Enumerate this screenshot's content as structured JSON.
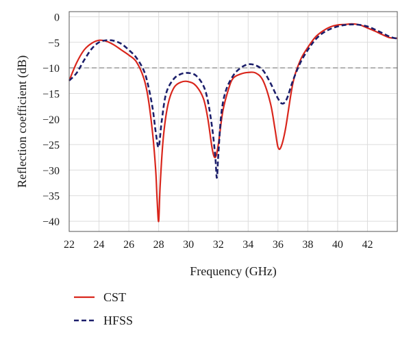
{
  "chart_data": {
    "type": "line",
    "xlabel": "Frequency (GHz)",
    "ylabel": "Reflection coefficient (dB)",
    "xlim": [
      22,
      44
    ],
    "ylim": [
      -42,
      1
    ],
    "xticks": [
      22,
      24,
      26,
      28,
      30,
      32,
      34,
      36,
      38,
      40,
      42
    ],
    "xtick_labels": [
      "22",
      "24",
      "26",
      "28",
      "30",
      "32",
      "34",
      "36",
      "38",
      "40",
      "42"
    ],
    "yticks": [
      0,
      -5,
      -10,
      -15,
      -20,
      -25,
      -30,
      -35,
      -40
    ],
    "ytick_labels": [
      "0",
      "−5",
      "−10",
      "−15",
      "−20",
      "−25",
      "−30",
      "−35",
      "−40"
    ],
    "grid": true,
    "reference_line": {
      "y": -10,
      "style": "dashed",
      "color": "#9a9a9a"
    },
    "legend_position": "bottom-left",
    "series": [
      {
        "name": "CST",
        "color": "#d9261c",
        "dash": "solid",
        "x": [
          22,
          22.5,
          23,
          23.5,
          24,
          24.5,
          25,
          25.5,
          26,
          26.5,
          27,
          27.3,
          27.6,
          27.8,
          27.9,
          28,
          28.1,
          28.3,
          28.6,
          29,
          29.5,
          30,
          30.5,
          31,
          31.3,
          31.6,
          31.8,
          32,
          32.3,
          32.7,
          33,
          33.5,
          34,
          34.5,
          35,
          35.5,
          35.8,
          36,
          36.2,
          36.5,
          37,
          37.5,
          38,
          38.5,
          39,
          39.5,
          40,
          40.5,
          41,
          41.5,
          42,
          42.5,
          43,
          43.5,
          44
        ],
        "y": [
          -12.5,
          -9,
          -6.5,
          -5.2,
          -4.6,
          -4.8,
          -5.5,
          -6.5,
          -7.5,
          -8.8,
          -12,
          -16,
          -23,
          -30,
          -36,
          -40,
          -33,
          -24,
          -17.5,
          -14,
          -12.8,
          -12.7,
          -13.5,
          -16,
          -20,
          -26,
          -27.5,
          -25,
          -18.5,
          -14,
          -12,
          -11.2,
          -10.9,
          -11,
          -12.5,
          -17,
          -22,
          -25.5,
          -25.5,
          -22,
          -13,
          -8.5,
          -6,
          -4,
          -2.8,
          -2,
          -1.6,
          -1.5,
          -1.4,
          -1.6,
          -2.2,
          -2.8,
          -3.5,
          -4.1,
          -4.2
        ]
      },
      {
        "name": "HFSS",
        "color": "#1c1f6b",
        "dash": "dashed",
        "x": [
          22,
          22.5,
          23,
          23.5,
          24,
          24.5,
          25,
          25.5,
          26,
          26.5,
          27,
          27.3,
          27.6,
          27.8,
          28,
          28.2,
          28.5,
          29,
          29.5,
          30,
          30.5,
          31,
          31.3,
          31.6,
          31.8,
          31.9,
          32,
          32.2,
          32.5,
          33,
          33.5,
          34,
          34.5,
          35,
          35.5,
          36,
          36.3,
          36.6,
          37,
          37.5,
          38,
          38.5,
          39,
          39.5,
          40,
          40.5,
          41,
          41.5,
          42,
          42.5,
          43,
          43.5,
          44
        ],
        "y": [
          -12.5,
          -11,
          -8.5,
          -6.3,
          -5,
          -4.6,
          -4.7,
          -5.3,
          -6.5,
          -8,
          -10.5,
          -13.5,
          -18,
          -22.5,
          -25.5,
          -20.5,
          -15,
          -12.2,
          -11.2,
          -11,
          -11.5,
          -13.5,
          -16.5,
          -22,
          -27.5,
          -31.5,
          -27,
          -19,
          -14.5,
          -11.5,
          -10,
          -9.3,
          -9.5,
          -10.5,
          -13,
          -16,
          -17,
          -16,
          -12.5,
          -9,
          -6.5,
          -4.5,
          -3.2,
          -2.4,
          -1.9,
          -1.6,
          -1.5,
          -1.6,
          -1.9,
          -2.5,
          -3.2,
          -3.9,
          -4.3
        ]
      }
    ]
  }
}
